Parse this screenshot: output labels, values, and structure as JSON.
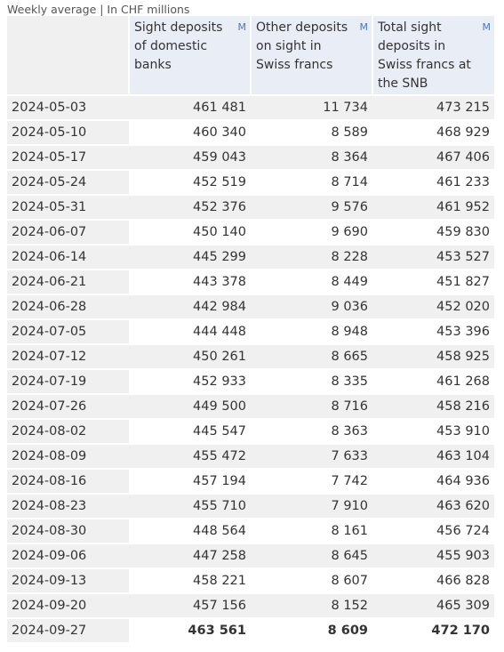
{
  "caption": "Weekly average | In CHF millions",
  "chart_data": {
    "type": "table",
    "title": "",
    "unit": "In CHF millions",
    "metadata_badge": "M",
    "columns": [
      "",
      "Sight deposits of domestic banks",
      "Other deposits on sight in Swiss francs",
      "Total sight deposits in Swiss francs at the SNB"
    ],
    "rows": [
      [
        "2024-05-03",
        "461 481",
        "11 734",
        "473 215"
      ],
      [
        "2024-05-10",
        "460 340",
        "8 589",
        "468 929"
      ],
      [
        "2024-05-17",
        "459 043",
        "8 364",
        "467 406"
      ],
      [
        "2024-05-24",
        "452 519",
        "8 714",
        "461 233"
      ],
      [
        "2024-05-31",
        "452 376",
        "9 576",
        "461 952"
      ],
      [
        "2024-06-07",
        "450 140",
        "9 690",
        "459 830"
      ],
      [
        "2024-06-14",
        "445 299",
        "8 228",
        "453 527"
      ],
      [
        "2024-06-21",
        "443 378",
        "8 449",
        "451 827"
      ],
      [
        "2024-06-28",
        "442 984",
        "9 036",
        "452 020"
      ],
      [
        "2024-07-05",
        "444 448",
        "8 948",
        "453 396"
      ],
      [
        "2024-07-12",
        "450 261",
        "8 665",
        "458 925"
      ],
      [
        "2024-07-19",
        "452 933",
        "8 335",
        "461 268"
      ],
      [
        "2024-07-26",
        "449 500",
        "8 716",
        "458 216"
      ],
      [
        "2024-08-02",
        "445 547",
        "8 363",
        "453 910"
      ],
      [
        "2024-08-09",
        "455 472",
        "7 633",
        "463 104"
      ],
      [
        "2024-08-16",
        "457 194",
        "7 742",
        "464 936"
      ],
      [
        "2024-08-23",
        "455 710",
        "7 910",
        "463 620"
      ],
      [
        "2024-08-30",
        "448 564",
        "8 161",
        "456 724"
      ],
      [
        "2024-09-06",
        "447 258",
        "8 645",
        "455 903"
      ],
      [
        "2024-09-13",
        "458 221",
        "8 607",
        "466 828"
      ],
      [
        "2024-09-20",
        "457 156",
        "8 152",
        "465 309"
      ],
      [
        "2024-09-27",
        "463 561",
        "8 609",
        "472 170"
      ]
    ],
    "latest_row_bold": true
  }
}
